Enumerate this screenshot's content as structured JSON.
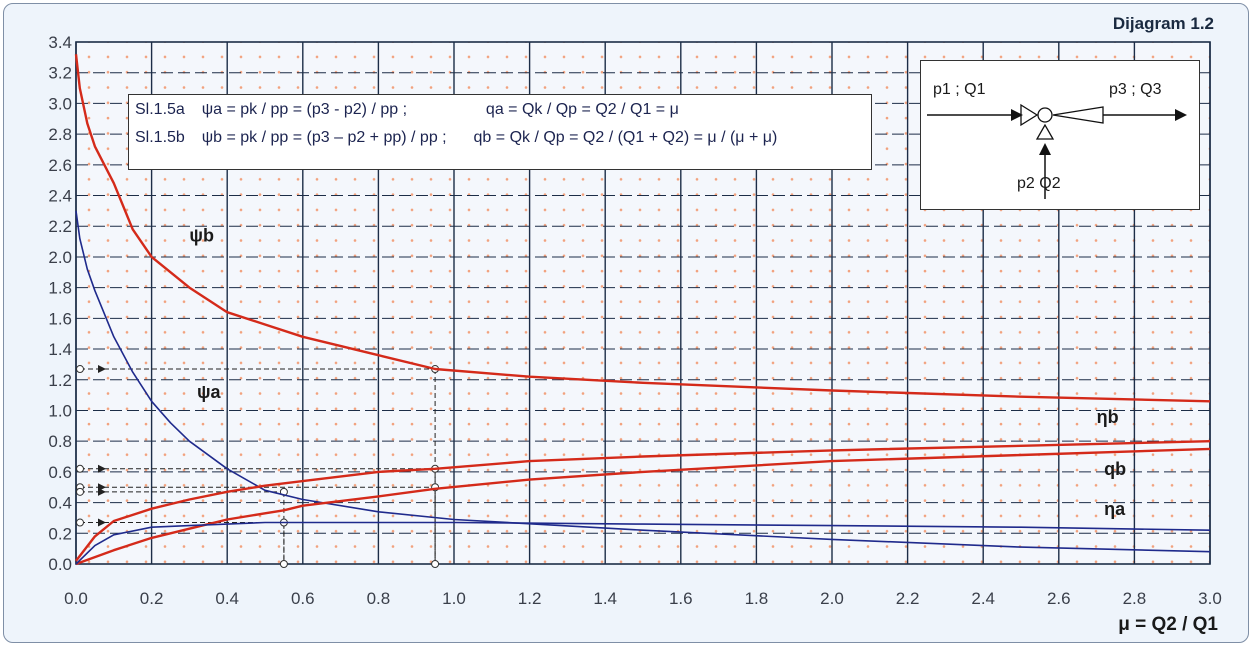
{
  "title": "Dijagram 1.2",
  "formulas": {
    "line_a": {
      "ref": "Sl.1.5a",
      "psi": "ψa = pk / pp = (p3 - p2) / pp ;",
      "q": "qa = Qk / Qp = Q2 / Q1 = μ"
    },
    "line_b": {
      "ref": "Sl.1.5b",
      "psi": "ψb = pk / pp = (p3 – p2 + pp) / pp ;",
      "q": "qb = Qk / Qp = Q2 / (Q1 + Q2) = μ / (μ + μ)"
    }
  },
  "schema": {
    "inlet": "p1 ; Q1",
    "outlet": "p3 ; Q3",
    "side": "p2 Q2"
  },
  "colors": {
    "red_curve": "#d42a1a",
    "blue_curve": "#1f2a8c",
    "grid": "#1c2d47",
    "plot_bg": "#f4f7fc",
    "accent_dots": "#f2a27e"
  },
  "chart_data": {
    "type": "line",
    "xlabel": "μ = Q2 / Q1",
    "ylabel": "",
    "xlim": [
      0,
      3.0
    ],
    "ylim": [
      0,
      3.4
    ],
    "grid": true,
    "x_ticks": [
      "0.0",
      "0.2",
      "0.4",
      "0.6",
      "0.8",
      "1.0",
      "1.2",
      "1.4",
      "1.6",
      "1.8",
      "2.0",
      "2.2",
      "2.4",
      "2.6",
      "2.8",
      "3.0"
    ],
    "y_ticks": [
      "0.0",
      "0.2",
      "0.4",
      "0.6",
      "0.8",
      "1.0",
      "1.2",
      "1.4",
      "1.6",
      "1.8",
      "2.0",
      "2.2",
      "2.4",
      "2.6",
      "2.8",
      "3.0",
      "3.2",
      "3.4"
    ],
    "series": [
      {
        "name": "ψb",
        "color": "#d42a1a",
        "x": [
          0.0,
          0.01,
          0.03,
          0.05,
          0.1,
          0.15,
          0.2,
          0.3,
          0.4,
          0.5,
          0.6,
          0.8,
          0.95,
          1.2,
          1.5,
          2.0,
          2.5,
          3.0
        ],
        "y": [
          3.32,
          3.1,
          2.87,
          2.72,
          2.48,
          2.18,
          2.0,
          1.8,
          1.64,
          1.56,
          1.48,
          1.36,
          1.27,
          1.22,
          1.18,
          1.13,
          1.09,
          1.06
        ]
      },
      {
        "name": "ψa",
        "color": "#1f2a8c",
        "x": [
          0.0,
          0.01,
          0.03,
          0.05,
          0.1,
          0.15,
          0.2,
          0.25,
          0.3,
          0.4,
          0.5,
          0.6,
          0.8,
          1.0,
          1.5,
          2.0,
          2.5,
          3.0
        ],
        "y": [
          2.3,
          2.12,
          1.92,
          1.78,
          1.48,
          1.25,
          1.06,
          0.92,
          0.8,
          0.62,
          0.48,
          0.42,
          0.34,
          0.29,
          0.22,
          0.16,
          0.11,
          0.08
        ]
      },
      {
        "name": "ηb",
        "color": "#d42a1a",
        "x": [
          0.0,
          0.05,
          0.1,
          0.2,
          0.3,
          0.4,
          0.5,
          0.6,
          0.8,
          0.95,
          1.2,
          1.5,
          2.0,
          2.5,
          3.0
        ],
        "y": [
          0.02,
          0.18,
          0.28,
          0.36,
          0.42,
          0.47,
          0.51,
          0.54,
          0.6,
          0.62,
          0.67,
          0.7,
          0.74,
          0.77,
          0.8
        ]
      },
      {
        "name": "qb",
        "color": "#d42a1a",
        "x": [
          0.0,
          0.1,
          0.2,
          0.3,
          0.4,
          0.5,
          0.55,
          0.6,
          0.8,
          0.95,
          1.2,
          1.5,
          2.0,
          2.5,
          3.0
        ],
        "y": [
          0.0,
          0.09,
          0.17,
          0.23,
          0.29,
          0.33,
          0.35,
          0.38,
          0.44,
          0.49,
          0.55,
          0.6,
          0.67,
          0.71,
          0.75
        ]
      },
      {
        "name": "ηa",
        "color": "#1f2a8c",
        "x": [
          0.0,
          0.05,
          0.1,
          0.2,
          0.3,
          0.4,
          0.5,
          0.55,
          0.6,
          0.8,
          1.0,
          1.5,
          2.0,
          2.5,
          3.0
        ],
        "y": [
          0.0,
          0.12,
          0.19,
          0.24,
          0.25,
          0.26,
          0.27,
          0.27,
          0.27,
          0.27,
          0.27,
          0.26,
          0.25,
          0.24,
          0.22
        ]
      }
    ],
    "annotations": [
      {
        "label": "ψb",
        "x": 0.3,
        "y": 2.1
      },
      {
        "label": "ψa",
        "x": 0.32,
        "y": 1.08
      },
      {
        "label": "ηb",
        "x": 2.7,
        "y": 0.92
      },
      {
        "label": "qb",
        "x": 2.72,
        "y": 0.58
      },
      {
        "label": "ηa",
        "x": 2.72,
        "y": 0.32
      }
    ],
    "guides": [
      {
        "x": 0.95,
        "y": 1.27
      },
      {
        "x": 0.95,
        "y": 0.62
      },
      {
        "x": 0.95,
        "y": 0.5
      },
      {
        "x": 0.55,
        "y": 0.47
      },
      {
        "x": 0.55,
        "y": 0.27
      }
    ]
  }
}
